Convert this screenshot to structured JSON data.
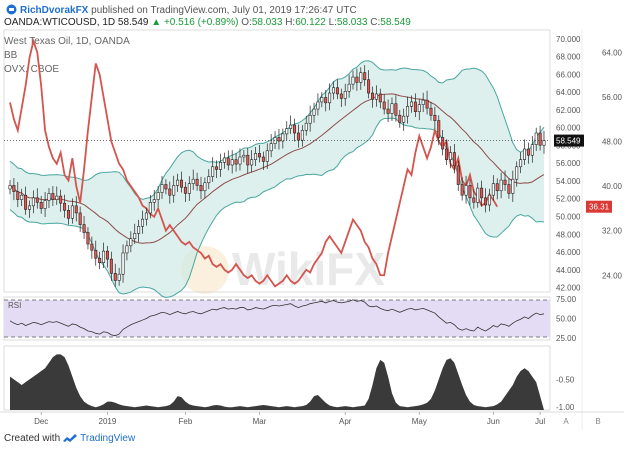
{
  "header": {
    "author": "RichDvorakFX",
    "published": "published on TradingView.com, July 01, 2019 17:26:47 UTC",
    "symbol": "OANDA:WTICOUSD, 1D",
    "last": "58.549",
    "change": "▲ +0.516 (+0.89%)",
    "o_label": "O:",
    "o_value": "58.033",
    "h_label": "H:",
    "h_value": "60.122",
    "l_label": "L:",
    "l_value": "58.033",
    "c_label": "C:",
    "c_value": "58.549"
  },
  "indicators": {
    "line1": "West Texas Oil, 1D, OANDA",
    "line2": "BB",
    "line3": "OVX, CBOE"
  },
  "footer": {
    "created": "Created with",
    "brand": "TradingView"
  },
  "watermark": "WikiFX",
  "colors": {
    "up": "#26a69a",
    "down": "#ef5350",
    "candle_stroke": "#222222",
    "bb_band": "#4aa6a0",
    "bb_fill": "#cfe9e6",
    "bb_mid": "#8e4b4b",
    "ovx": "#d4544e",
    "rsi_line": "#333333",
    "rsi_fill": "#e4dcf4",
    "area": "#3a3a3a",
    "label_dark": "#111111",
    "label_red": "#d93a35"
  },
  "chart_data": [
    {
      "type": "candlestick",
      "title": "West Texas Oil, 1D, OANDA",
      "x_ticks": [
        "Dec",
        "2019",
        "Feb",
        "Mar",
        "Apr",
        "May",
        "Jun",
        "Jul"
      ],
      "y_ticks_right": [
        70.0,
        68.0,
        66.0,
        64.0,
        62.0,
        60.0,
        58.0,
        56.0,
        54.0,
        52.0,
        50.0,
        48.0,
        46.0,
        44.0,
        42.0
      ],
      "ylim": [
        41.5,
        71.0
      ],
      "last_price_label": "58.549",
      "close": [
        53.5,
        52.8,
        51.9,
        52.4,
        50.8,
        51.2,
        52.1,
        51.6,
        50.9,
        51.8,
        52.6,
        51.9,
        52.3,
        51.5,
        50.7,
        49.8,
        51.2,
        50.4,
        49.1,
        48.2,
        46.9,
        46.2,
        45.3,
        44.8,
        46.1,
        45.2,
        43.6,
        42.8,
        43.5,
        45.9,
        46.7,
        47.5,
        48.1,
        48.9,
        49.7,
        50.4,
        51.6,
        51.9,
        52.7,
        53.6,
        53.1,
        52.4,
        53.5,
        54.1,
        53.3,
        52.6,
        53.7,
        54.2,
        53.5,
        52.9,
        53.8,
        54.5,
        55.6,
        55.3,
        56.1,
        56.6,
        55.8,
        56.4,
        55.9,
        56.7,
        56.9,
        55.8,
        56.4,
        57.1,
        56.7,
        56.2,
        57.4,
        58.2,
        58.9,
        58.5,
        59.3,
        59.9,
        60.3,
        59.4,
        58.6,
        59.7,
        60.5,
        61.4,
        62.1,
        62.9,
        63.4,
        62.8,
        63.9,
        64.5,
        63.8,
        63.3,
        64.1,
        64.9,
        65.7,
        65.1,
        66.2,
        65.4,
        63.9,
        63.2,
        63.8,
        62.9,
        62.1,
        61.6,
        62.7,
        61.4,
        60.6,
        61.3,
        62.4,
        62.9,
        61.8,
        62.6,
        63.1,
        62.2,
        61.4,
        60.8,
        58.9,
        57.6,
        56.4,
        57.2,
        55.7,
        53.6,
        52.4,
        53.5,
        52.1,
        51.6,
        53.2,
        52.1,
        51.3,
        52.4,
        53.7,
        52.9,
        54.1,
        53.6,
        52.6,
        54.2,
        55.6,
        56.4,
        57.6,
        56.9,
        58.1,
        59.4,
        58.03,
        58.549
      ]
    },
    {
      "type": "line",
      "name": "OVX, CBOE",
      "y_ticks_right": [
        64.0,
        56.0,
        48.0,
        40.0,
        32.0,
        24.0
      ],
      "last_value_label": "36.31",
      "values": [
        55,
        52,
        50,
        54,
        58,
        63,
        66,
        64,
        58,
        50,
        47,
        45,
        44,
        46,
        42,
        41,
        45,
        40,
        37,
        43,
        50,
        56,
        62,
        60,
        56,
        52,
        48,
        46,
        44,
        43,
        41,
        40,
        39,
        38,
        36.5,
        36,
        35,
        34.5,
        36,
        34,
        32,
        33,
        32,
        31,
        30,
        29.5,
        30,
        29,
        28.5,
        28,
        27,
        27.5,
        26,
        25.5,
        26,
        25,
        24.5,
        25,
        26,
        25,
        24,
        23.5,
        24,
        23,
        22.5,
        23,
        24,
        23,
        22,
        22.5,
        23,
        24,
        23,
        22.5,
        23,
        24,
        25,
        24.5,
        26,
        27,
        28,
        30,
        31,
        30,
        29,
        28,
        30,
        32,
        34,
        33,
        32,
        30,
        29,
        27,
        26,
        24,
        24,
        28,
        31,
        34,
        37,
        40,
        43,
        42,
        46,
        49,
        47,
        45,
        47,
        50,
        48,
        47,
        48,
        44,
        43,
        45,
        41,
        40,
        42,
        39,
        38,
        36.5,
        37,
        38.5,
        37.5,
        36.3
      ]
    },
    {
      "type": "line",
      "name": "RSI",
      "y_ticks_right": [
        75.0,
        50.0,
        25.0
      ],
      "ylim": [
        25,
        75
      ],
      "values": [
        47,
        44,
        42,
        44,
        41,
        43,
        45,
        44,
        42,
        44,
        46,
        45,
        46,
        44,
        42,
        40,
        43,
        42,
        39,
        37,
        34,
        33,
        31,
        30,
        33,
        32,
        29,
        28,
        30,
        36,
        39,
        42,
        44,
        46,
        48,
        50,
        53,
        54,
        56,
        58,
        57,
        55,
        57,
        59,
        57,
        56,
        58,
        59,
        57,
        56,
        58,
        60,
        62,
        61,
        63,
        64,
        62,
        63,
        62,
        64,
        64,
        61,
        62,
        64,
        63,
        62,
        64,
        66,
        67,
        66,
        67,
        68,
        69,
        66,
        64,
        66,
        67,
        69,
        70,
        71,
        72,
        70,
        72,
        73,
        71,
        70,
        71,
        72,
        74,
        72,
        73,
        71,
        66,
        65,
        66,
        63,
        61,
        60,
        62,
        60,
        58,
        60,
        62,
        63,
        61,
        62,
        63,
        61,
        59,
        57,
        52,
        48,
        44,
        45,
        42,
        37,
        35,
        37,
        35,
        34,
        39,
        36,
        34,
        37,
        41,
        39,
        43,
        42,
        40,
        44,
        47,
        49,
        52,
        50,
        54,
        57,
        55,
        56
      ]
    },
    {
      "type": "area",
      "y_ticks_right": [
        -0.5,
        -1.0
      ],
      "ylim": [
        -1.05,
        0.1
      ],
      "values": [
        -0.45,
        -0.5,
        -0.55,
        -0.6,
        -0.55,
        -0.5,
        -0.45,
        -0.4,
        -0.35,
        -0.3,
        -0.2,
        -0.1,
        -0.05,
        -0.05,
        -0.1,
        -0.25,
        -0.45,
        -0.65,
        -0.8,
        -0.9,
        -0.95,
        -0.98,
        -1.0,
        -0.98,
        -0.95,
        -0.9,
        -0.9,
        -0.92,
        -0.95,
        -0.97,
        -0.98,
        -0.99,
        -1.0,
        -0.99,
        -0.98,
        -0.97,
        -0.98,
        -0.99,
        -1.0,
        -0.99,
        -0.98,
        -0.96,
        -0.9,
        -0.8,
        -0.82,
        -0.9,
        -0.95,
        -0.97,
        -0.98,
        -0.99,
        -1.0,
        -0.99,
        -0.97,
        -0.96,
        -0.97,
        -0.99,
        -1.0,
        -1.0,
        -0.99,
        -0.98,
        -0.99,
        -1.0,
        -0.99,
        -0.98,
        -0.97,
        -0.96,
        -0.97,
        -0.98,
        -0.99,
        -1.0,
        -0.99,
        -0.98,
        -0.99,
        -1.0,
        -0.99,
        -0.98,
        -0.96,
        -0.9,
        -0.8,
        -0.78,
        -0.85,
        -0.92,
        -0.97,
        -0.99,
        -1.0,
        -0.99,
        -0.98,
        -0.99,
        -1.0,
        -0.99,
        -0.98,
        -0.97,
        -0.85,
        -0.6,
        -0.3,
        -0.15,
        -0.2,
        -0.45,
        -0.75,
        -0.92,
        -0.98,
        -0.99,
        -1.0,
        -0.99,
        -0.98,
        -0.97,
        -0.95,
        -0.92,
        -0.85,
        -0.7,
        -0.5,
        -0.3,
        -0.15,
        -0.12,
        -0.2,
        -0.4,
        -0.6,
        -0.78,
        -0.9,
        -0.96,
        -0.98,
        -0.99,
        -1.0,
        -0.99,
        -0.98,
        -0.95,
        -0.9,
        -0.8,
        -0.7,
        -0.6,
        -0.45,
        -0.35,
        -0.3,
        -0.35,
        -0.45,
        -0.55
      ]
    }
  ],
  "right_axis": {
    "scale_labels": [
      "A",
      "B"
    ]
  }
}
